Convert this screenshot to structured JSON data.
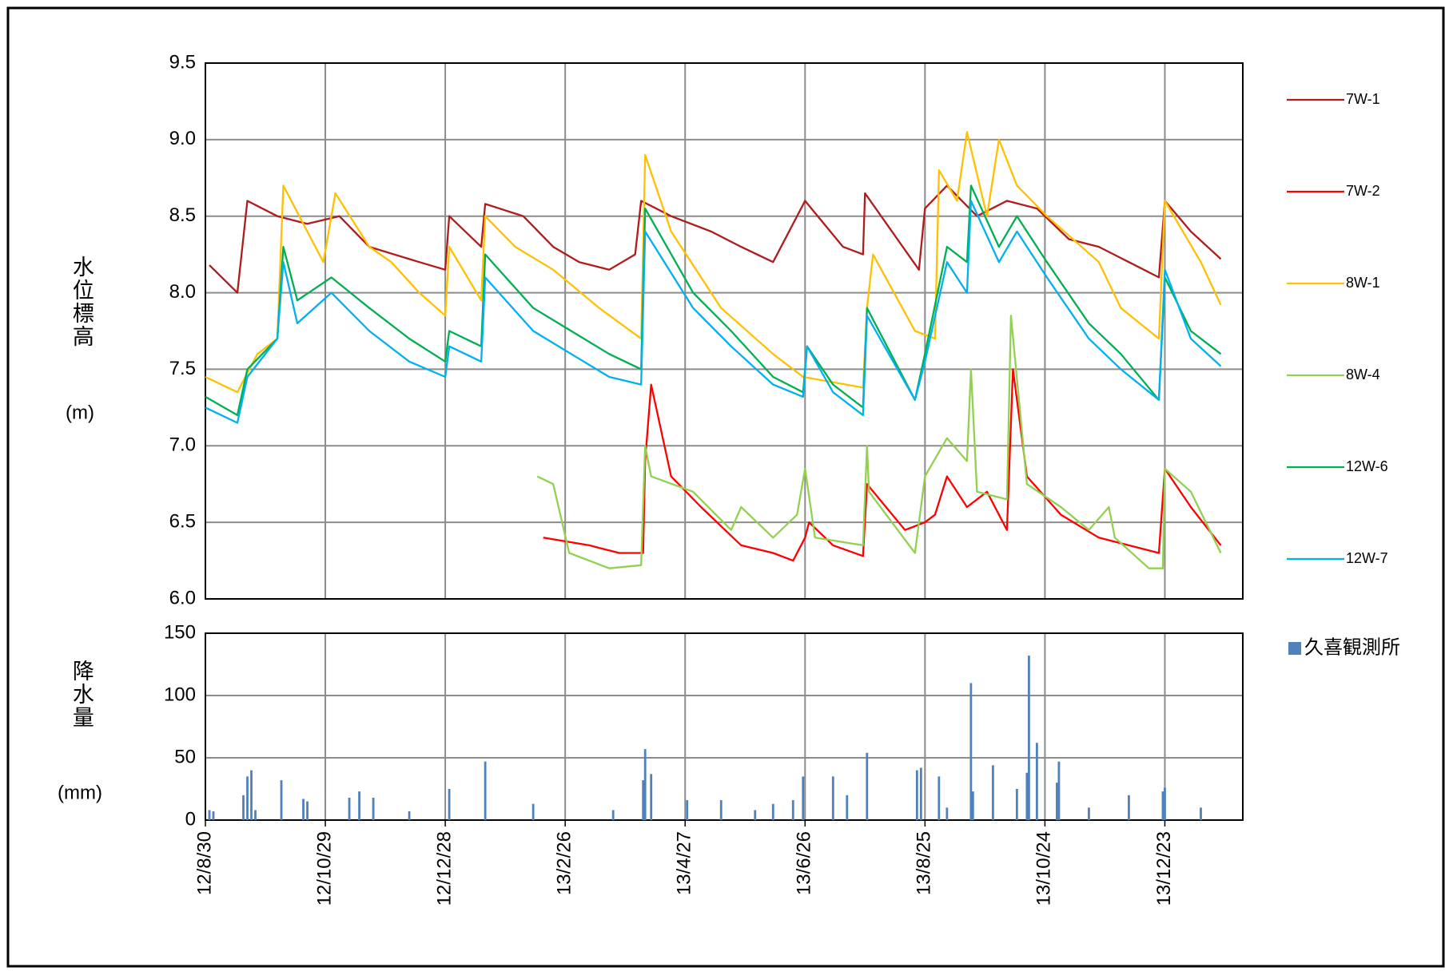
{
  "chart_data": [
    {
      "type": "line",
      "ylabel": "水位標高",
      "yunit": "(m)",
      "xlim": [
        "12/8/30",
        "14/1/31"
      ],
      "xticks": [
        "12/8/30",
        "12/10/29",
        "12/12/28",
        "13/2/26",
        "13/4/27",
        "13/6/26",
        "13/8/25",
        "13/10/24",
        "13/12/23"
      ],
      "ylim": [
        6.0,
        9.5
      ],
      "yticks": [
        {
          "value": 6.0,
          "label": "6.0"
        },
        6.5,
        {
          "value": 7.0,
          "label": "7.0"
        },
        7.5,
        {
          "value": 8.0,
          "label": "8.0"
        },
        8.5,
        {
          "value": 9.0,
          "label": "9.0"
        },
        9.5
      ],
      "grid": true,
      "series": [
        {
          "name": "7W-1",
          "color": "#b01c1c",
          "x": [
            "12/9/1",
            "12/9/15",
            "12/9/20",
            "12/10/5",
            "12/10/20",
            "12/11/5",
            "12/11/20",
            "12/12/15",
            "12/12/28",
            "12/12/30",
            "13/1/15",
            "13/1/17",
            "13/2/5",
            "13/2/20",
            "13/3/5",
            "13/3/20",
            "13/4/2",
            "13/4/5",
            "13/4/20",
            "13/5/10",
            "13/5/25",
            "13/6/10",
            "13/6/26",
            "13/7/15",
            "13/7/25",
            "13/7/26",
            "13/8/22",
            "13/8/25",
            "13/9/5",
            "13/9/20",
            "13/10/5",
            "13/10/20",
            "13/11/5",
            "13/11/20",
            "13/12/5",
            "13/12/20",
            "13/12/23",
            "14/1/5",
            "14/1/20"
          ],
          "values": [
            8.18,
            8.0,
            8.6,
            8.5,
            8.45,
            8.5,
            8.3,
            8.2,
            8.15,
            8.5,
            8.3,
            8.58,
            8.5,
            8.3,
            8.2,
            8.15,
            8.25,
            8.6,
            8.5,
            8.4,
            8.3,
            8.2,
            8.6,
            8.3,
            8.25,
            8.65,
            8.15,
            8.55,
            8.7,
            8.5,
            8.6,
            8.55,
            8.35,
            8.3,
            8.2,
            8.1,
            8.6,
            8.4,
            8.22
          ]
        },
        {
          "name": "7W-2",
          "color": "#ff0000",
          "x": [
            "13/2/15",
            "13/3/10",
            "13/3/25",
            "13/4/6",
            "13/4/7",
            "13/4/10",
            "13/4/20",
            "13/5/5",
            "13/5/25",
            "13/6/10",
            "13/6/20",
            "13/6/26",
            "13/6/28",
            "13/7/10",
            "13/7/25",
            "13/7/27",
            "13/8/15",
            "13/8/25",
            "13/8/30",
            "13/9/5",
            "13/9/15",
            "13/9/25",
            "13/10/5",
            "13/10/8",
            "13/10/15",
            "13/11/1",
            "13/11/20",
            "13/12/20",
            "13/12/23",
            "14/1/5",
            "14/1/20"
          ],
          "values": [
            6.4,
            6.35,
            6.3,
            6.3,
            6.9,
            7.4,
            6.8,
            6.6,
            6.35,
            6.3,
            6.25,
            6.4,
            6.5,
            6.35,
            6.28,
            6.75,
            6.45,
            6.5,
            6.55,
            6.8,
            6.6,
            6.7,
            6.45,
            7.5,
            6.8,
            6.55,
            6.4,
            6.3,
            6.85,
            6.6,
            6.35
          ]
        },
        {
          "name": "8W-1",
          "color": "#ffc000",
          "x": [
            "12/8/30",
            "12/9/15",
            "12/9/25",
            "12/10/5",
            "12/10/8",
            "12/10/20",
            "12/10/28",
            "12/11/3",
            "12/11/20",
            "12/12/1",
            "12/12/15",
            "12/12/28",
            "12/12/30",
            "13/1/15",
            "13/1/17",
            "13/2/1",
            "13/2/20",
            "13/3/15",
            "13/4/5",
            "13/4/7",
            "13/4/20",
            "13/5/15",
            "13/6/10",
            "13/6/25",
            "13/7/25",
            "13/7/27",
            "13/7/30",
            "13/8/20",
            "13/8/30",
            "13/9/1",
            "13/9/10",
            "13/9/15",
            "13/9/25",
            "13/10/1",
            "13/10/10",
            "13/10/25",
            "13/11/20",
            "13/12/1",
            "13/12/20",
            "13/12/23",
            "14/1/10",
            "14/1/20"
          ],
          "values": [
            7.45,
            7.35,
            7.6,
            7.7,
            8.7,
            8.4,
            8.2,
            8.65,
            8.3,
            8.2,
            8.0,
            7.85,
            8.3,
            7.95,
            8.5,
            8.3,
            8.15,
            7.9,
            7.7,
            8.9,
            8.4,
            7.9,
            7.6,
            7.45,
            7.38,
            7.9,
            8.25,
            7.75,
            7.7,
            8.8,
            8.6,
            9.05,
            8.5,
            9.0,
            8.7,
            8.5,
            8.2,
            7.9,
            7.7,
            8.6,
            8.2,
            7.92
          ]
        },
        {
          "name": "8W-4",
          "color": "#92d050",
          "x": [
            "13/2/12",
            "13/2/20",
            "13/2/28",
            "13/3/20",
            "13/4/5",
            "13/4/7",
            "13/4/10",
            "13/5/1",
            "13/5/20",
            "13/5/25",
            "13/6/10",
            "13/6/22",
            "13/6/26",
            "13/7/1",
            "13/7/25",
            "13/7/27",
            "13/7/28",
            "13/8/20",
            "13/8/25",
            "13/9/5",
            "13/9/15",
            "13/9/17",
            "13/9/20",
            "13/10/5",
            "13/10/7",
            "13/10/15",
            "13/11/1",
            "13/11/15",
            "13/11/25",
            "13/11/28",
            "13/12/15",
            "13/12/22",
            "13/12/23",
            "14/1/5",
            "14/1/20"
          ],
          "values": [
            6.8,
            6.75,
            6.3,
            6.2,
            6.22,
            7.0,
            6.8,
            6.7,
            6.45,
            6.6,
            6.4,
            6.55,
            6.85,
            6.4,
            6.35,
            7.0,
            6.7,
            6.3,
            6.8,
            7.05,
            6.9,
            7.5,
            6.7,
            6.65,
            7.85,
            6.75,
            6.6,
            6.45,
            6.6,
            6.4,
            6.2,
            6.2,
            6.85,
            6.7,
            6.3
          ]
        },
        {
          "name": "12W-6",
          "color": "#00b050",
          "x": [
            "12/8/30",
            "12/9/15",
            "12/9/20",
            "12/10/5",
            "12/10/8",
            "12/10/15",
            "12/11/1",
            "12/11/20",
            "12/12/10",
            "12/12/28",
            "12/12/30",
            "13/1/15",
            "13/1/17",
            "13/2/10",
            "13/3/1",
            "13/3/20",
            "13/4/5",
            "13/4/7",
            "13/5/1",
            "13/5/20",
            "13/6/10",
            "13/6/25",
            "13/6/27",
            "13/7/10",
            "13/7/25",
            "13/7/27",
            "13/8/20",
            "13/8/25",
            "13/9/5",
            "13/9/15",
            "13/9/17",
            "13/10/1",
            "13/10/10",
            "13/10/25",
            "13/11/15",
            "13/12/1",
            "13/12/20",
            "13/12/23",
            "14/1/5",
            "14/1/20"
          ],
          "values": [
            7.32,
            7.2,
            7.5,
            7.7,
            8.3,
            7.95,
            8.1,
            7.9,
            7.7,
            7.55,
            7.75,
            7.65,
            8.25,
            7.9,
            7.75,
            7.6,
            7.5,
            8.55,
            8.0,
            7.75,
            7.45,
            7.35,
            7.65,
            7.4,
            7.25,
            7.9,
            7.3,
            7.6,
            8.3,
            8.2,
            8.7,
            8.3,
            8.5,
            8.2,
            7.8,
            7.6,
            7.3,
            8.1,
            7.75,
            7.6
          ]
        },
        {
          "name": "12W-7",
          "color": "#00b0f0",
          "x": [
            "12/8/30",
            "12/9/15",
            "12/9/20",
            "12/10/5",
            "12/10/8",
            "12/10/15",
            "12/11/1",
            "12/11/20",
            "12/12/10",
            "12/12/28",
            "12/12/30",
            "13/1/15",
            "13/1/17",
            "13/2/10",
            "13/3/1",
            "13/3/20",
            "13/4/5",
            "13/4/7",
            "13/5/1",
            "13/5/20",
            "13/6/10",
            "13/6/25",
            "13/6/27",
            "13/7/10",
            "13/7/25",
            "13/7/27",
            "13/8/20",
            "13/8/25",
            "13/9/5",
            "13/9/15",
            "13/9/17",
            "13/10/1",
            "13/10/10",
            "13/10/25",
            "13/11/15",
            "13/12/1",
            "13/12/20",
            "13/12/23",
            "14/1/5",
            "14/1/20"
          ],
          "values": [
            7.25,
            7.15,
            7.45,
            7.7,
            8.2,
            7.8,
            8.0,
            7.75,
            7.55,
            7.45,
            7.65,
            7.55,
            8.1,
            7.75,
            7.6,
            7.45,
            7.4,
            8.4,
            7.9,
            7.65,
            7.4,
            7.32,
            7.65,
            7.35,
            7.2,
            7.85,
            7.3,
            7.55,
            8.2,
            8.0,
            8.6,
            8.2,
            8.4,
            8.1,
            7.7,
            7.5,
            7.3,
            8.15,
            7.7,
            7.52
          ]
        }
      ]
    },
    {
      "type": "bar",
      "ylabel": "降水量",
      "yunit": "(mm)",
      "xlim": [
        "12/8/30",
        "14/1/31"
      ],
      "xticks": [
        "12/8/30",
        "12/10/29",
        "12/12/28",
        "13/2/26",
        "13/4/27",
        "13/6/26",
        "13/8/25",
        "13/10/24",
        "13/12/23"
      ],
      "ylim": [
        0,
        150
      ],
      "yticks": [
        0,
        50,
        100,
        150
      ],
      "grid": true,
      "series": [
        {
          "name": "久喜観測所",
          "color": "#4f81bd",
          "x": [
            "12/9/1",
            "12/9/3",
            "12/9/18",
            "12/9/20",
            "12/9/22",
            "12/9/24",
            "12/10/7",
            "12/10/18",
            "12/10/20",
            "12/11/10",
            "12/11/15",
            "12/11/22",
            "12/12/10",
            "12/12/30",
            "13/1/17",
            "13/2/10",
            "13/3/22",
            "13/4/6",
            "13/4/7",
            "13/4/10",
            "13/4/28",
            "13/5/15",
            "13/6/1",
            "13/6/10",
            "13/6/20",
            "13/6/25",
            "13/7/10",
            "13/7/17",
            "13/7/27",
            "13/8/21",
            "13/8/23",
            "13/9/1",
            "13/9/5",
            "13/9/17",
            "13/9/18",
            "13/9/28",
            "13/10/10",
            "13/10/15",
            "13/10/16",
            "13/10/20",
            "13/10/30",
            "13/10/31",
            "13/11/15",
            "13/12/5",
            "13/12/22",
            "13/12/23",
            "14/1/10"
          ],
          "values": [
            8,
            7,
            20,
            35,
            40,
            8,
            32,
            17,
            15,
            18,
            23,
            18,
            7,
            25,
            47,
            13,
            8,
            32,
            57,
            37,
            16,
            16,
            8,
            13,
            16,
            35,
            35,
            20,
            54,
            40,
            42,
            35,
            10,
            110,
            23,
            44,
            25,
            38,
            132,
            62,
            30,
            47,
            10,
            20,
            23,
            26,
            10
          ]
        }
      ]
    }
  ]
}
